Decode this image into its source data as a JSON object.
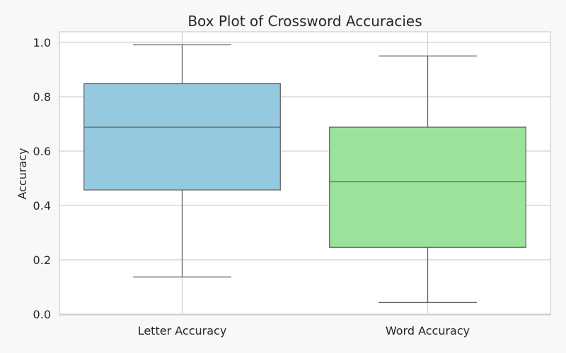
{
  "chart_data": {
    "type": "box",
    "title": "Box Plot of Crossword Accuracies",
    "xlabel": "",
    "ylabel": "Accuracy",
    "ylim": [
      0.0,
      1.0
    ],
    "yticks": [
      "0.0",
      "0.2",
      "0.4",
      "0.6",
      "0.8",
      "1.0"
    ],
    "grid": true,
    "boxes": [
      {
        "label": "Letter Accuracy",
        "color": "#95c9e0",
        "whisker_low": 0.137,
        "q1": 0.457,
        "median": 0.688,
        "q3": 0.848,
        "whisker_high": 0.991
      },
      {
        "label": "Word Accuracy",
        "color": "#9be39b",
        "whisker_low": 0.043,
        "q1": 0.246,
        "median": 0.487,
        "q3": 0.688,
        "whisker_high": 0.95
      }
    ]
  }
}
